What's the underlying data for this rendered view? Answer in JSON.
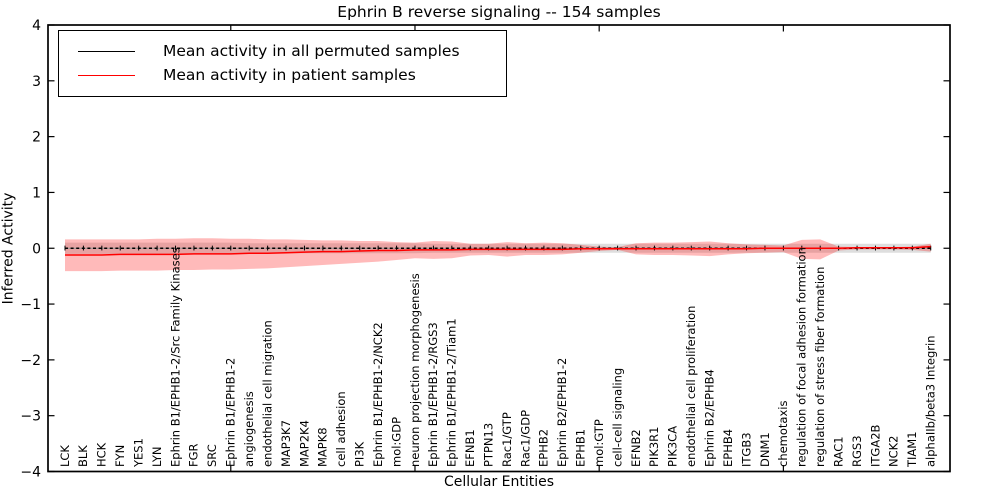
{
  "chart_data": {
    "type": "line",
    "title": "Ephrin B reverse signaling -- 154 samples",
    "xlabel": "Cellular Entities",
    "ylabel": "Inferred Activity",
    "ylim": [
      -4,
      4
    ],
    "ytick_labels": [
      "4",
      "3",
      "2",
      "1",
      "0",
      "−1",
      "−2",
      "−3",
      "−4"
    ],
    "grid": false,
    "legend_position": "upper left",
    "categories": [
      "LCK",
      "BLK",
      "HCK",
      "FYN",
      "YES1",
      "LYN",
      "Ephrin B1/EPHB1-2/Src Family Kinases",
      "FGR",
      "SRC",
      "Ephrin B1/EPHB1-2",
      "angiogenesis",
      "endothelial cell migration",
      "MAP3K7",
      "MAP2K4",
      "MAPK8",
      "cell adhesion",
      "PI3K",
      "Ephrin B1/EPHB1-2/NCK2",
      "mol:GDP",
      "neuron projection morphogenesis",
      "Ephrin B1/EPHB1-2/RGS3",
      "Ephrin B1/EPHB1-2/Tiam1",
      "EFNB1",
      "PTPN13",
      "Rac1/GTP",
      "Rac1/GDP",
      "EPHB2",
      "Ephrin B2/EPHB1-2",
      "EPHB1",
      "mol:GTP",
      "cell-cell signaling",
      "EFNB2",
      "PIK3R1",
      "PIK3CA",
      "endothelial cell proliferation",
      "Ephrin B2/EPHB4",
      "EPHB4",
      "ITGB3",
      "DNM1",
      "chemotaxis",
      "regulation of focal adhesion formation",
      "regulation of stress fiber formation",
      "RAC1",
      "RGS3",
      "ITGA2B",
      "NCK2",
      "TIAM1",
      "alphaIIb/beta3 Integrin"
    ],
    "series": [
      {
        "name": "Mean activity in all permuted samples",
        "color": "#000000",
        "band_color": "rgba(0,0,0,0.13)",
        "values": [
          0,
          0,
          0,
          0,
          0,
          0,
          0,
          0,
          0,
          0,
          0,
          0,
          0,
          0,
          0,
          0,
          0,
          0,
          0,
          0,
          0,
          0,
          0,
          0,
          0,
          0,
          0,
          0,
          0,
          0,
          0,
          0,
          0,
          0,
          0,
          0,
          0,
          0,
          0,
          0,
          0,
          0,
          0,
          0,
          0,
          0,
          0,
          0
        ],
        "band_upper": [
          0.1,
          0.1,
          0.1,
          0.1,
          0.1,
          0.1,
          0.1,
          0.1,
          0.1,
          0.1,
          0.09,
          0.09,
          0.09,
          0.09,
          0.09,
          0.09,
          0.09,
          0.09,
          0.09,
          0.09,
          0.08,
          0.08,
          0.08,
          0.08,
          0.08,
          0.08,
          0.08,
          0.08,
          0.08,
          0.08,
          0.08,
          0.08,
          0.08,
          0.08,
          0.08,
          0.08,
          0.08,
          0.08,
          0.08,
          0.08,
          0.08,
          0.08,
          0.08,
          0.08,
          0.08,
          0.08,
          0.08,
          0.08
        ],
        "band_lower": [
          -0.1,
          -0.1,
          -0.1,
          -0.1,
          -0.1,
          -0.1,
          -0.1,
          -0.1,
          -0.1,
          -0.1,
          -0.09,
          -0.09,
          -0.09,
          -0.09,
          -0.09,
          -0.09,
          -0.09,
          -0.09,
          -0.09,
          -0.09,
          -0.08,
          -0.08,
          -0.08,
          -0.08,
          -0.08,
          -0.08,
          -0.08,
          -0.08,
          -0.08,
          -0.08,
          -0.08,
          -0.08,
          -0.08,
          -0.08,
          -0.08,
          -0.08,
          -0.08,
          -0.08,
          -0.08,
          -0.08,
          -0.08,
          -0.08,
          -0.08,
          -0.08,
          -0.08,
          -0.08,
          -0.08,
          -0.08
        ]
      },
      {
        "name": "Mean activity in patient samples",
        "color": "#ff0000",
        "band_color": "rgba(255,0,0,0.27)",
        "values": [
          -0.12,
          -0.12,
          -0.12,
          -0.11,
          -0.11,
          -0.11,
          -0.11,
          -0.1,
          -0.1,
          -0.1,
          -0.09,
          -0.09,
          -0.08,
          -0.07,
          -0.06,
          -0.06,
          -0.05,
          -0.04,
          -0.04,
          -0.03,
          -0.03,
          -0.03,
          -0.02,
          -0.02,
          -0.02,
          -0.02,
          -0.02,
          -0.02,
          -0.01,
          -0.01,
          -0.01,
          -0.01,
          -0.01,
          -0.01,
          -0.01,
          -0.01,
          -0.01,
          -0.01,
          0.0,
          0.0,
          0.0,
          0.0,
          0.0,
          0.01,
          0.01,
          0.01,
          0.01,
          0.03
        ],
        "band_upper": [
          0.16,
          0.16,
          0.16,
          0.16,
          0.16,
          0.17,
          0.17,
          0.18,
          0.18,
          0.17,
          0.17,
          0.16,
          0.16,
          0.15,
          0.14,
          0.14,
          0.13,
          0.13,
          0.11,
          0.1,
          0.13,
          0.12,
          0.08,
          0.08,
          0.11,
          0.09,
          0.1,
          0.09,
          0.06,
          0.03,
          0.02,
          0.09,
          0.1,
          0.1,
          0.11,
          0.12,
          0.09,
          0.07,
          0.06,
          0.05,
          0.15,
          0.16,
          0.03,
          0.02,
          0.02,
          0.02,
          0.03,
          0.08
        ],
        "band_lower": [
          -0.41,
          -0.41,
          -0.41,
          -0.4,
          -0.4,
          -0.4,
          -0.39,
          -0.39,
          -0.38,
          -0.38,
          -0.37,
          -0.36,
          -0.34,
          -0.32,
          -0.3,
          -0.28,
          -0.26,
          -0.24,
          -0.21,
          -0.18,
          -0.19,
          -0.18,
          -0.13,
          -0.12,
          -0.15,
          -0.12,
          -0.12,
          -0.11,
          -0.08,
          -0.05,
          -0.03,
          -0.11,
          -0.12,
          -0.12,
          -0.13,
          -0.14,
          -0.11,
          -0.09,
          -0.08,
          -0.07,
          -0.19,
          -0.2,
          -0.04,
          -0.02,
          -0.02,
          -0.02,
          -0.03,
          -0.06
        ]
      }
    ]
  }
}
